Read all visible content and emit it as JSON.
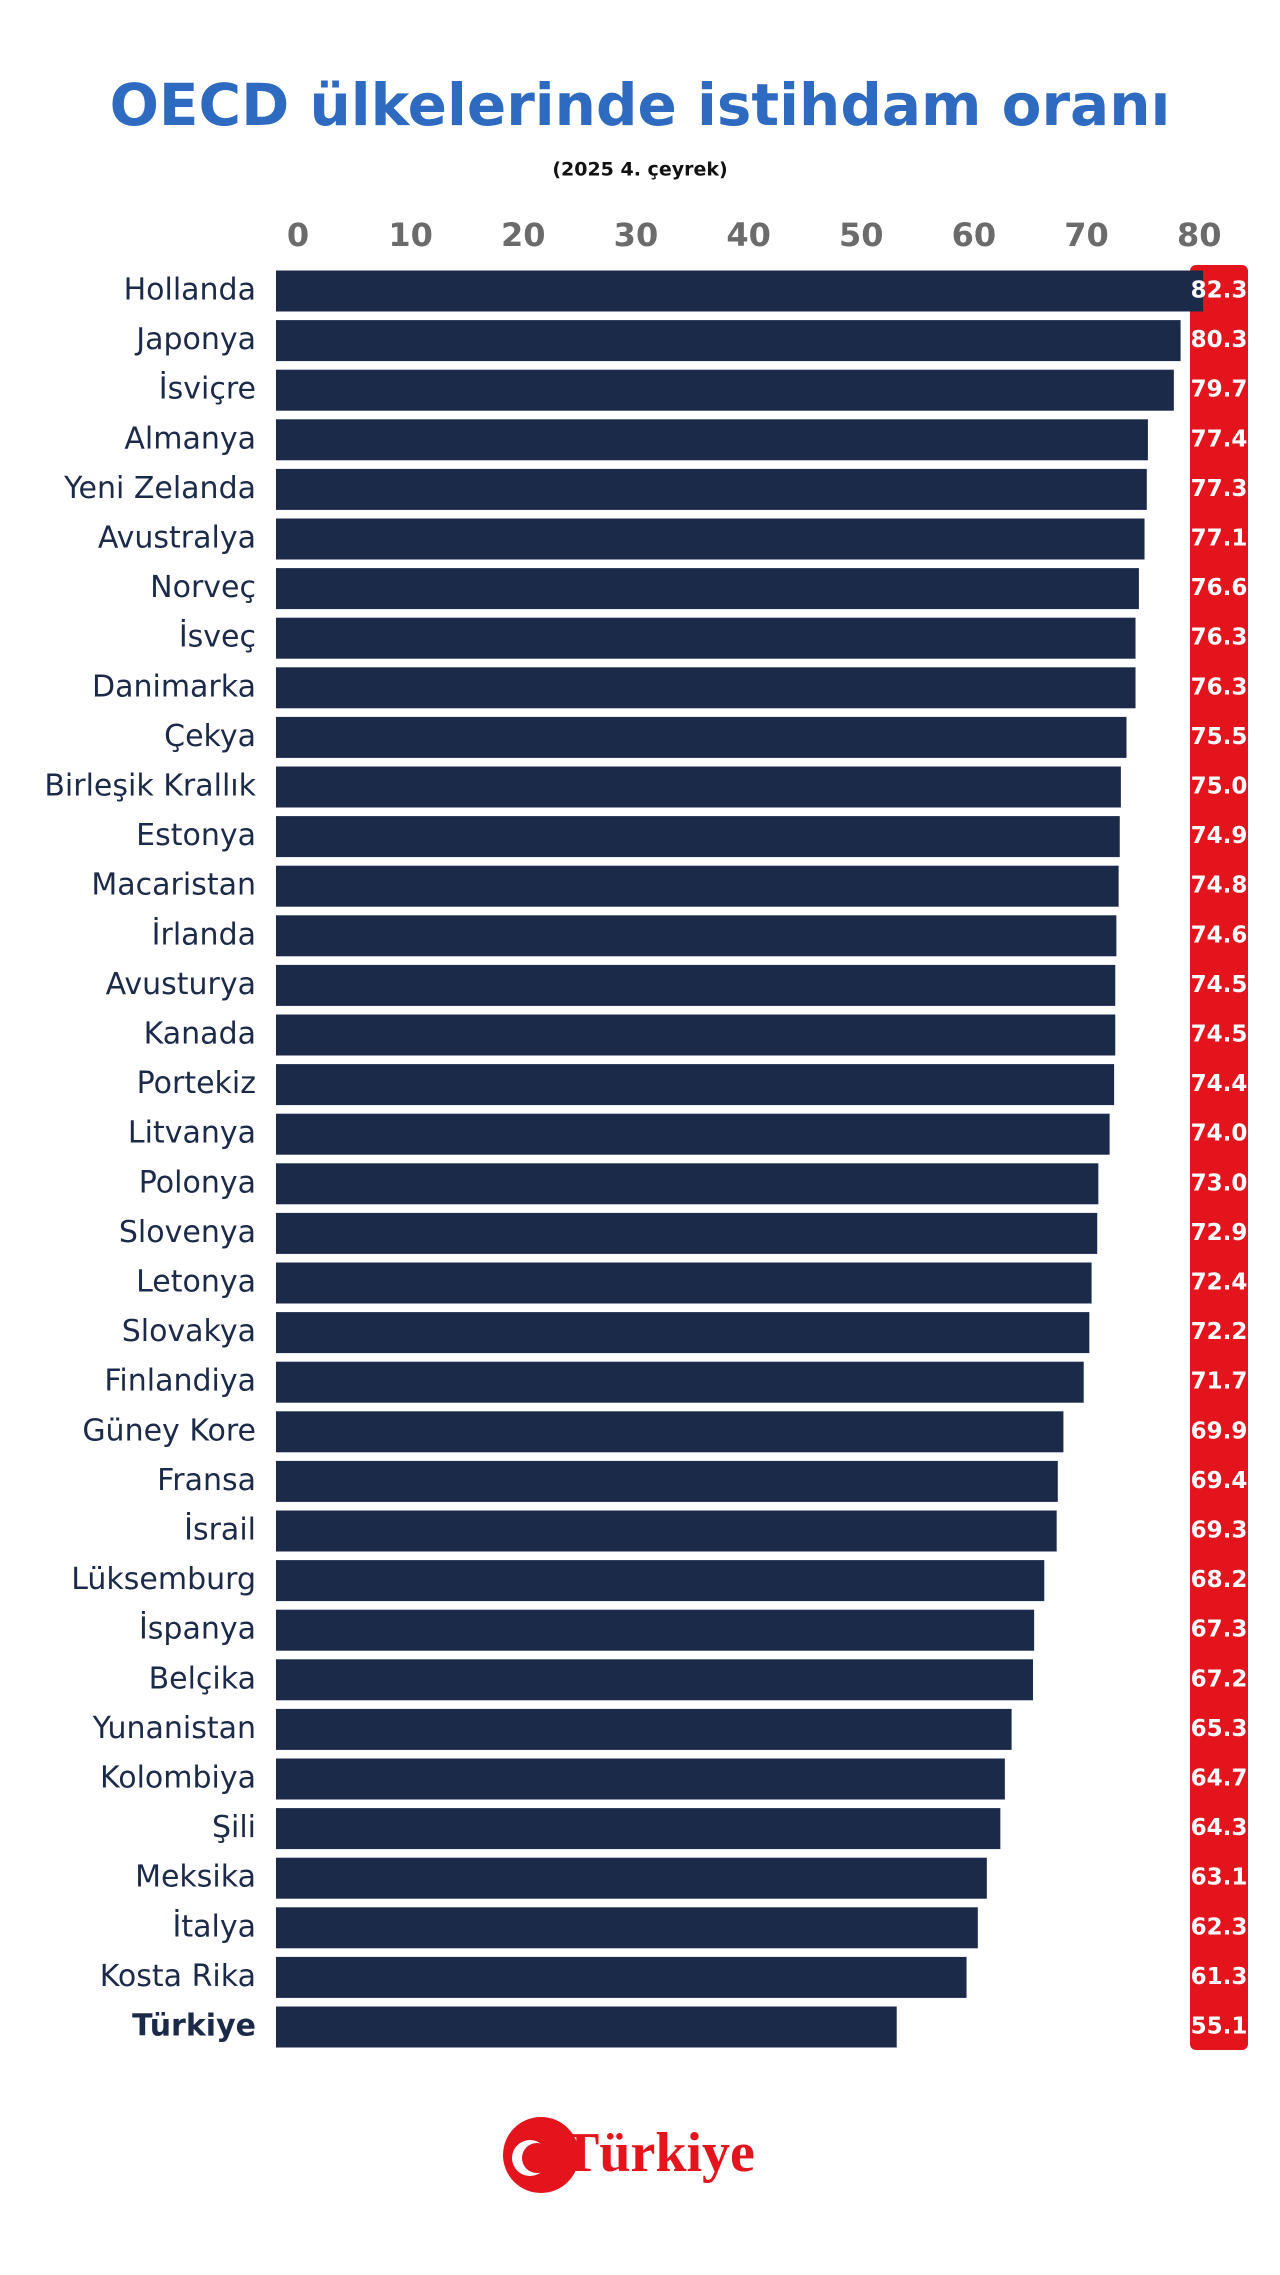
{
  "chart_data": {
    "type": "barh",
    "title": "OECD ülkelerinde istihdam oranı",
    "subtitle": "(2025 4. çeyrek)",
    "categories": [
      "Hollanda",
      "Japonya",
      "İsviçre",
      "Almanya",
      "Yeni Zelanda",
      "Avustralya",
      "Norveç",
      "İsveç",
      "Danimarka",
      "Çekya",
      "Birleşik Krallık",
      "Estonya",
      "Macaristan",
      "İrlanda",
      "Avusturya",
      "Kanada",
      "Portekiz",
      "Litvanya",
      "Polonya",
      "Slovenya",
      "Letonya",
      "Slovakya",
      "Finlandiya",
      "Güney Kore",
      "Fransa",
      "İsrail",
      "Lüksemburg",
      "İspanya",
      "Belçika",
      "Yunanistan",
      "Kolombiya",
      "Şili",
      "Meksika",
      "İtalya",
      "Kosta Rika",
      "Türkiye"
    ],
    "values": [
      82.3,
      80.3,
      79.7,
      77.4,
      77.3,
      77.1,
      76.6,
      76.3,
      76.3,
      75.5,
      75.0,
      74.9,
      74.8,
      74.6,
      74.5,
      74.5,
      74.4,
      74.0,
      73.0,
      72.9,
      72.4,
      72.2,
      71.7,
      69.9,
      69.4,
      69.3,
      68.2,
      67.3,
      67.2,
      65.3,
      64.7,
      64.3,
      63.1,
      62.3,
      61.3,
      55.1
    ],
    "value_labels": [
      "82.3",
      "80.3",
      "79.7",
      "77.4",
      "77.3",
      "77.1",
      "76.6",
      "76.3",
      "76.3",
      "75.5",
      "75.0",
      "74.9",
      "74.8",
      "74.6",
      "74.5",
      "74.5",
      "74.4",
      "74.0",
      "73.0",
      "72.9",
      "72.4",
      "72.2",
      "71.7",
      "69.9",
      "69.4",
      "69.3",
      "68.2",
      "67.3",
      "67.2",
      "65.3",
      "64.7",
      "64.3",
      "63.1",
      "62.3",
      "61.3",
      "55.1"
    ],
    "color": "#1c2a4a",
    "label_color": "#e3141c",
    "highlight": "Türkiye",
    "xlim": [
      0,
      83
    ],
    "xticks": [
      0,
      10,
      20,
      30,
      40,
      50,
      60,
      70,
      80
    ],
    "logo": "Türkiye"
  }
}
